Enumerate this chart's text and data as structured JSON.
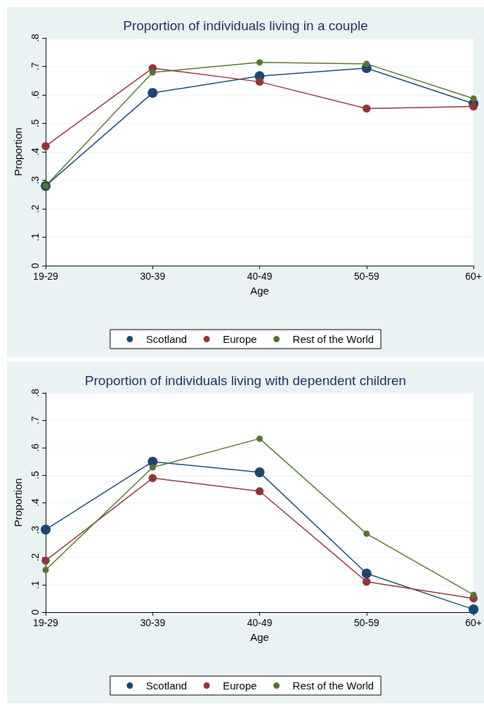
{
  "chart_data": [
    {
      "type": "line",
      "title": "Proportion of individuals living in a couple",
      "xlabel": "Age",
      "ylabel": "Proportion",
      "categories": [
        "19-29",
        "30-39",
        "40-49",
        "50-59",
        "60+"
      ],
      "series": [
        {
          "name": "Scotland",
          "color": "#1a476f",
          "values": [
            0.28,
            0.607,
            0.666,
            0.694,
            0.569
          ]
        },
        {
          "name": "Europe",
          "color": "#90353b",
          "values": [
            0.42,
            0.694,
            0.646,
            0.552,
            0.559
          ]
        },
        {
          "name": "Rest of the World",
          "color": "#55752f",
          "values": [
            0.28,
            0.679,
            0.714,
            0.709,
            0.587
          ]
        }
      ],
      "ylim": [
        0,
        0.8
      ],
      "yticks": [
        0,
        {
          "value": 0.1,
          "label": ".1"
        },
        {
          "value": 0.2,
          "label": ".2"
        },
        {
          "value": 0.3,
          "label": ".3"
        },
        {
          "value": 0.4,
          "label": ".4"
        },
        {
          "value": 0.5,
          "label": ".5"
        },
        {
          "value": 0.6,
          "label": ".6"
        },
        {
          "value": 0.7,
          "label": ".7"
        },
        {
          "value": 0.8,
          "label": ".8"
        }
      ],
      "grid": "y",
      "legend": "bottom",
      "marker": "circle",
      "line_style": "solid"
    },
    {
      "type": "line",
      "title": "Proportion of individuals living with dependent children",
      "xlabel": "Age",
      "ylabel": "Proportion",
      "categories": [
        "19-29",
        "30-39",
        "40-49",
        "50-59",
        "60+"
      ],
      "series": [
        {
          "name": "Scotland",
          "color": "#1a476f",
          "values": [
            0.301,
            0.549,
            0.51,
            0.141,
            0.01
          ]
        },
        {
          "name": "Europe",
          "color": "#90353b",
          "values": [
            0.188,
            0.489,
            0.441,
            0.111,
            0.05
          ]
        },
        {
          "name": "Rest of the World",
          "color": "#55752f",
          "values": [
            0.154,
            0.528,
            0.633,
            0.286,
            0.063
          ]
        }
      ],
      "ylim": [
        0,
        0.8
      ],
      "yticks": [
        0,
        {
          "value": 0.1,
          "label": ".1"
        },
        {
          "value": 0.2,
          "label": ".2"
        },
        {
          "value": 0.3,
          "label": ".3"
        },
        {
          "value": 0.4,
          "label": ".4"
        },
        {
          "value": 0.5,
          "label": ".5"
        },
        {
          "value": 0.6,
          "label": ".6"
        },
        {
          "value": 0.7,
          "label": ".7"
        },
        {
          "value": 0.8,
          "label": ".8"
        }
      ],
      "grid": "y",
      "legend": "bottom",
      "marker": "circle",
      "line_style": "solid"
    }
  ]
}
